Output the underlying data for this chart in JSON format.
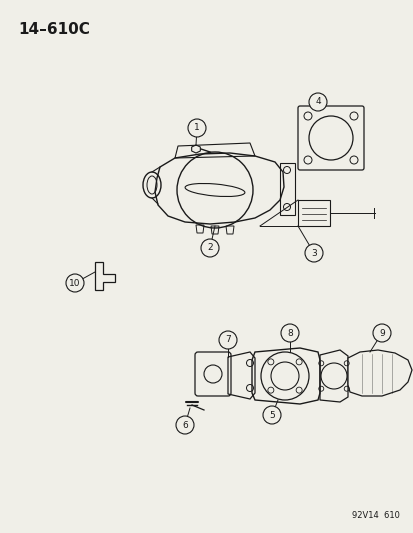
{
  "title": "14–610C",
  "bg_color": "#f0efe8",
  "line_color": "#1a1a1a",
  "watermark": "92V14  610",
  "fig_w": 4.14,
  "fig_h": 5.33,
  "dpi": 100
}
